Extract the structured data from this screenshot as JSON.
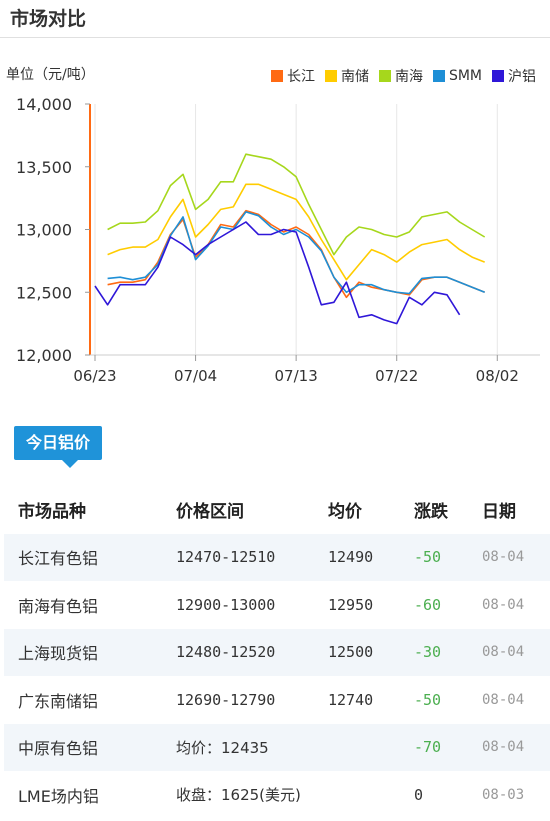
{
  "header": {
    "title": "市场对比"
  },
  "chart_data": {
    "type": "line",
    "unit_label": "单位（元/吨）",
    "ylim": [
      12000,
      14000
    ],
    "y_ticks": [
      "14,000",
      "13,500",
      "13,000",
      "12,500",
      "12,000"
    ],
    "y_tick_values": [
      14000,
      13500,
      13000,
      12500,
      12000
    ],
    "x_ticks": [
      {
        "label": "06/23",
        "index": 0
      },
      {
        "label": "07/04",
        "index": 8
      },
      {
        "label": "07/13",
        "index": 16
      },
      {
        "label": "07/22",
        "index": 24
      },
      {
        "label": "08/02",
        "index": 32
      }
    ],
    "point_count": 36,
    "legend_position": "top-right",
    "series": [
      {
        "name": "长江",
        "color": "#ff6a13",
        "start": 1,
        "values": [
          12560,
          12580,
          12580,
          12600,
          12740,
          12960,
          13080,
          12780,
          12880,
          13040,
          13020,
          13150,
          13120,
          13040,
          12980,
          13020,
          12960,
          12840,
          12620,
          12460,
          12580,
          12540,
          12520,
          12500,
          12480,
          12600,
          12620,
          12620,
          12580,
          12540,
          12500
        ]
      },
      {
        "name": "南储",
        "color": "#ffcc00",
        "start": 1,
        "values": [
          12800,
          12840,
          12860,
          12860,
          12920,
          13100,
          13240,
          12940,
          13040,
          13160,
          13180,
          13360,
          13360,
          13320,
          13280,
          13240,
          13100,
          12920,
          12760,
          12600,
          12720,
          12840,
          12800,
          12740,
          12820,
          12880,
          12900,
          12920,
          12840,
          12780,
          12740
        ]
      },
      {
        "name": "南海",
        "color": "#a6d71c",
        "start": 1,
        "values": [
          13000,
          13050,
          13050,
          13060,
          13150,
          13350,
          13440,
          13160,
          13240,
          13380,
          13380,
          13600,
          13580,
          13560,
          13500,
          13420,
          13200,
          13000,
          12800,
          12940,
          13020,
          13000,
          12960,
          12940,
          12980,
          13100,
          13120,
          13140,
          13060,
          13000,
          12940
        ]
      },
      {
        "name": "SMM",
        "color": "#1e8fd6",
        "start": 1,
        "values": [
          12610,
          12620,
          12600,
          12620,
          12720,
          12950,
          13100,
          12760,
          12870,
          13020,
          13000,
          13140,
          13110,
          13020,
          12960,
          13000,
          12940,
          12830,
          12620,
          12500,
          12560,
          12560,
          12520,
          12500,
          12490,
          12610,
          12620,
          12620,
          12580,
          12540,
          12500
        ]
      },
      {
        "name": "沪铝",
        "color": "#2f17d8",
        "start": 0,
        "values": [
          12550,
          12400,
          12560,
          12560,
          12560,
          12700,
          12940,
          12880,
          12800,
          12880,
          12940,
          13000,
          13060,
          12960,
          12960,
          13000,
          12980,
          12700,
          12400,
          12420,
          12580,
          12300,
          12320,
          12280,
          12250,
          12460,
          12400,
          12500,
          12480,
          12320
        ]
      }
    ]
  },
  "tab": {
    "label": "今日铝价"
  },
  "table": {
    "headers": [
      "市场品种",
      "价格区间",
      "均价",
      "涨跌",
      "日期"
    ],
    "rows": [
      {
        "market": "长江有色铝",
        "range": "12470-12510",
        "avg": "12490",
        "change": "-50",
        "date": "08-04"
      },
      {
        "market": "南海有色铝",
        "range": "12900-13000",
        "avg": "12950",
        "change": "-60",
        "date": "08-04"
      },
      {
        "market": "上海现货铝",
        "range": "12480-12520",
        "avg": "12500",
        "change": "-30",
        "date": "08-04"
      },
      {
        "market": "广东南储铝",
        "range": "12690-12790",
        "avg": "12740",
        "change": "-50",
        "date": "08-04"
      },
      {
        "market": "中原有色铝",
        "range": "均价：12435",
        "avg": "",
        "change": "-70",
        "date": "08-04"
      },
      {
        "market": "LME场内铝",
        "range": "收盘：1625(美元)",
        "avg": "",
        "change": "0",
        "date": "08-03"
      }
    ]
  }
}
